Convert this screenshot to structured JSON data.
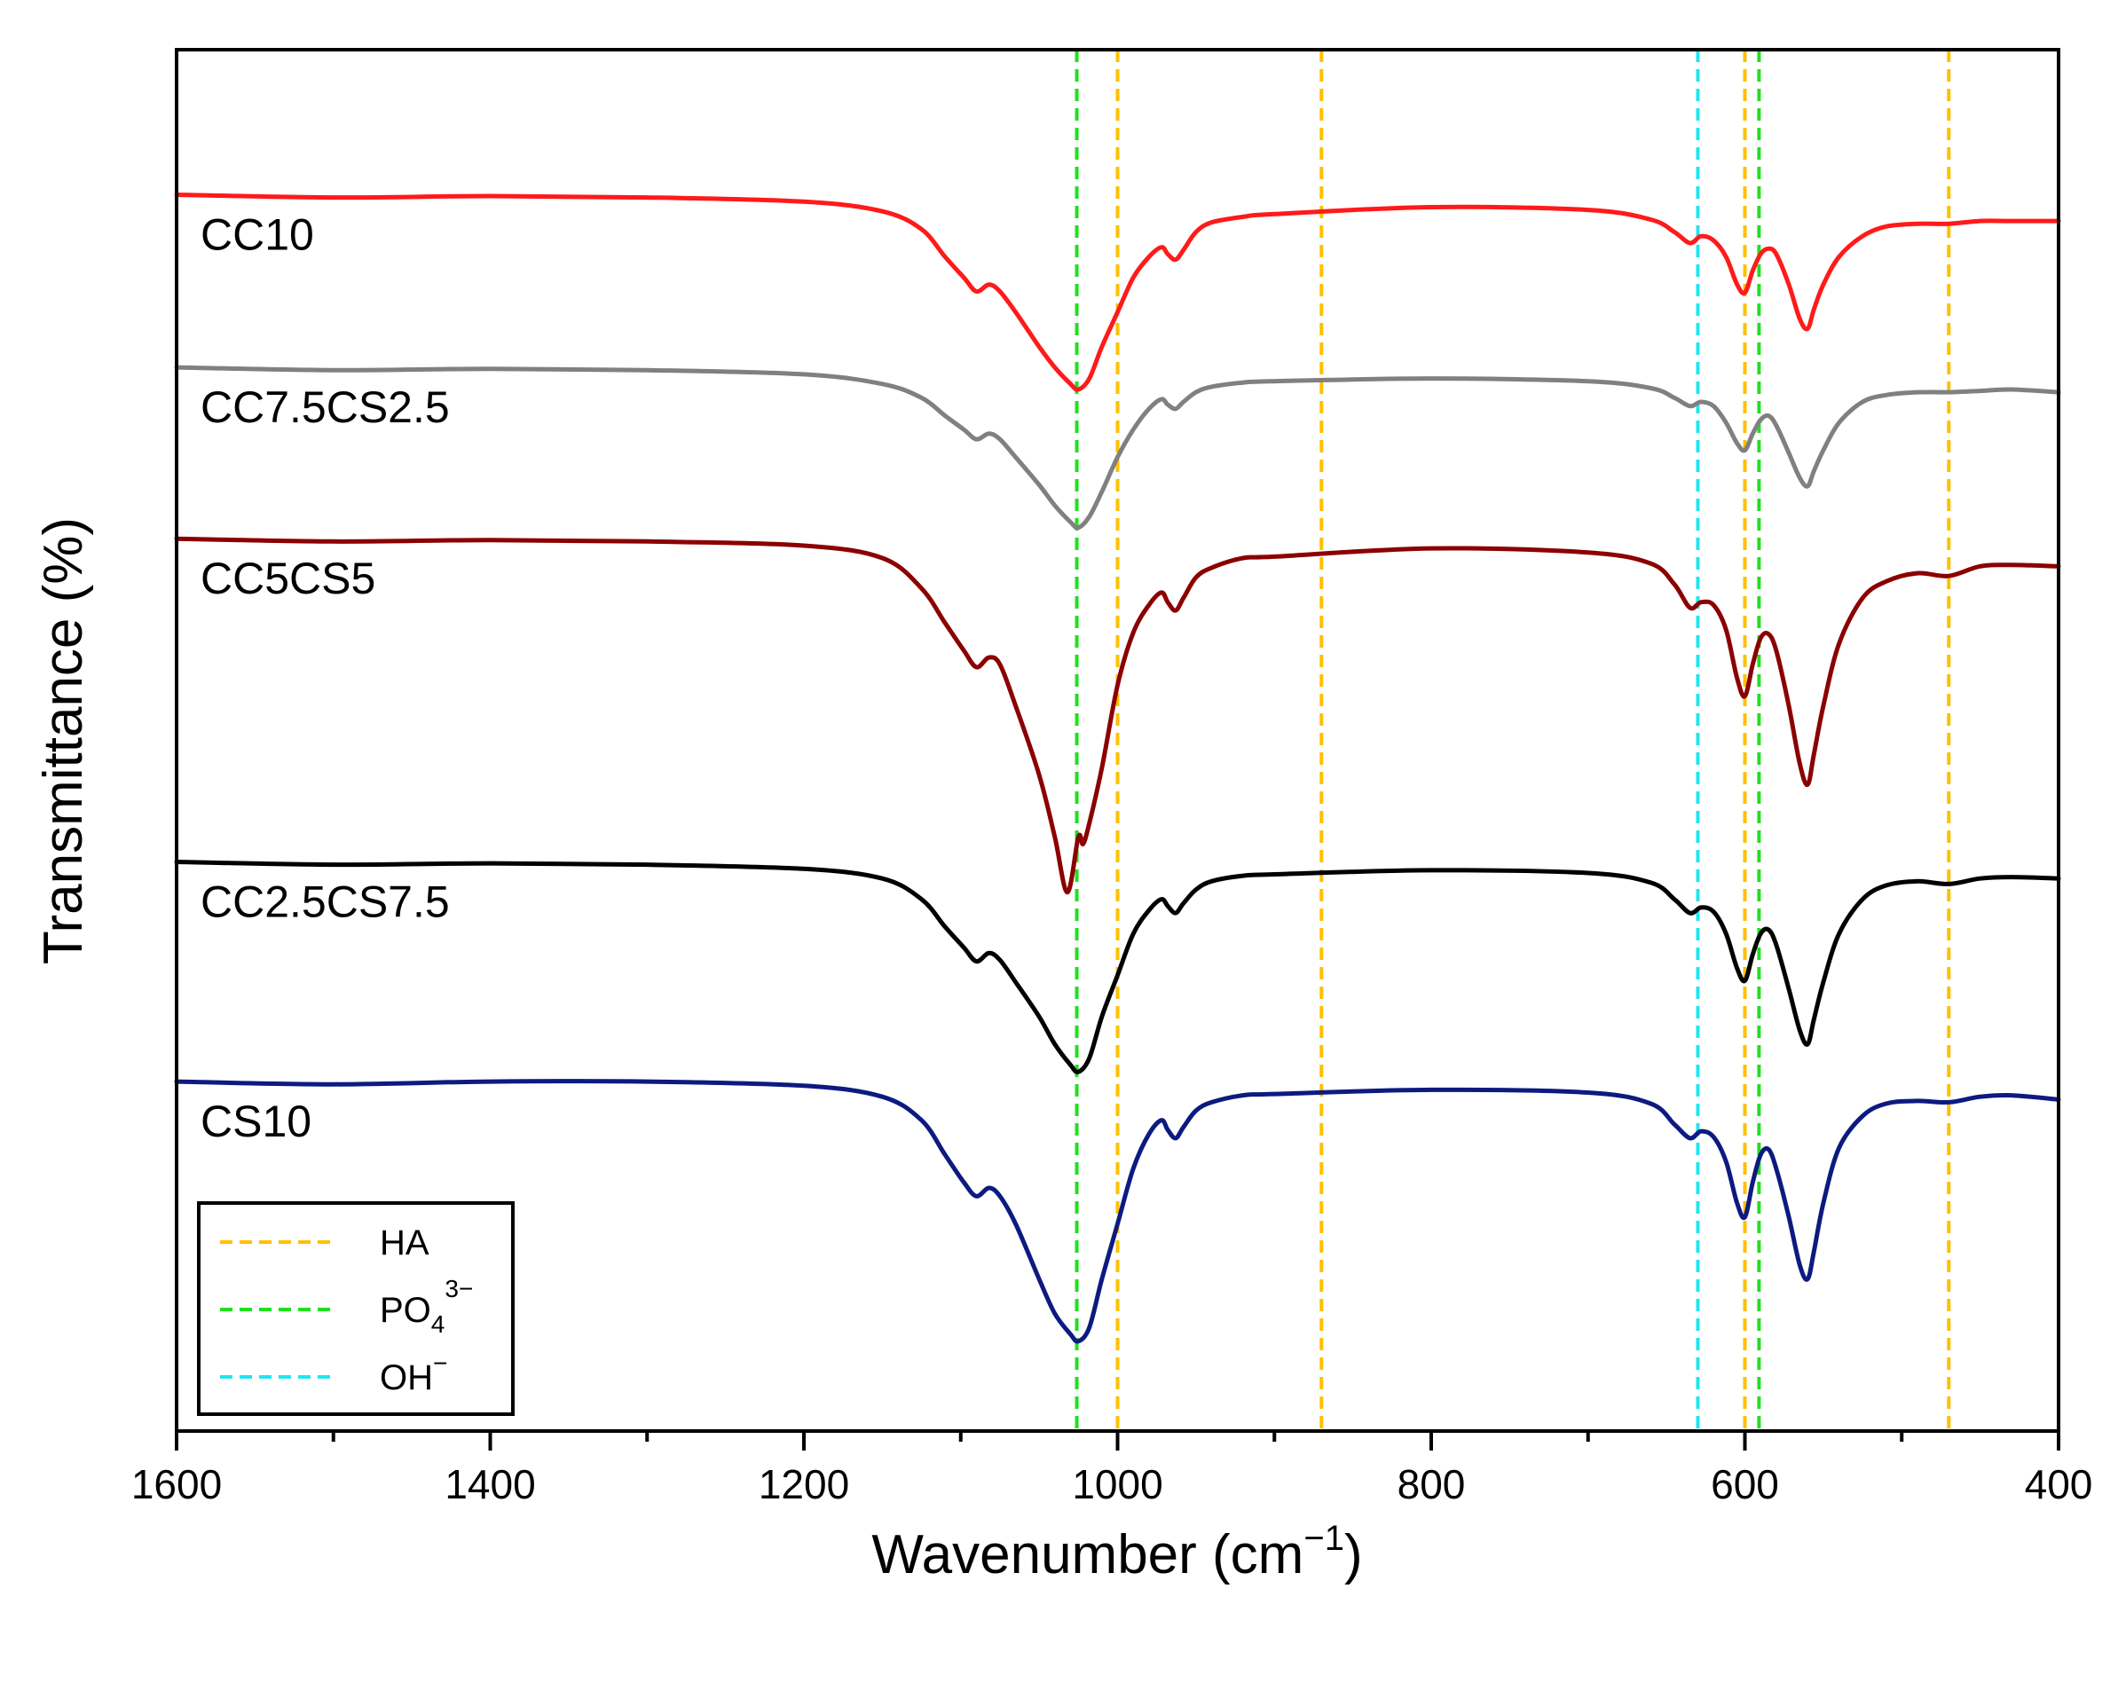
{
  "chart_data": {
    "type": "line",
    "title": "",
    "xlabel": "Wavenumber (cm⁻¹)",
    "xlabel_parts": {
      "base": "Wavenumber (cm",
      "sup": "−1",
      "close": ")"
    },
    "ylabel": "Transmittance (%)",
    "xlim": [
      1600,
      400
    ],
    "x_reversed": true,
    "ylim": [
      0,
      1
    ],
    "y_ticks_labeled": false,
    "x_ticks": [
      1600,
      1400,
      1200,
      1000,
      800,
      600,
      400
    ],
    "x_tick_labels": [
      "1600",
      "1400",
      "1200",
      "1000",
      "800",
      "600",
      "400"
    ],
    "grid": false,
    "series": [
      {
        "name": "CC10",
        "color": "#ff1a1a",
        "baseline": 0.895,
        "points": [
          [
            1600,
            0.895
          ],
          [
            1500,
            0.893
          ],
          [
            1400,
            0.894
          ],
          [
            1300,
            0.893
          ],
          [
            1200,
            0.89
          ],
          [
            1150,
            0.883
          ],
          [
            1125,
            0.87
          ],
          [
            1110,
            0.85
          ],
          [
            1098,
            0.835
          ],
          [
            1090,
            0.825
          ],
          [
            1082,
            0.83
          ],
          [
            1075,
            0.825
          ],
          [
            1065,
            0.81
          ],
          [
            1050,
            0.785
          ],
          [
            1040,
            0.77
          ],
          [
            1030,
            0.758
          ],
          [
            1025,
            0.754
          ],
          [
            1018,
            0.762
          ],
          [
            1010,
            0.785
          ],
          [
            1000,
            0.81
          ],
          [
            990,
            0.835
          ],
          [
            980,
            0.85
          ],
          [
            972,
            0.857
          ],
          [
            968,
            0.852
          ],
          [
            963,
            0.848
          ],
          [
            958,
            0.855
          ],
          [
            950,
            0.868
          ],
          [
            940,
            0.875
          ],
          [
            920,
            0.879
          ],
          [
            900,
            0.881
          ],
          [
            800,
            0.886
          ],
          [
            700,
            0.884
          ],
          [
            660,
            0.877
          ],
          [
            645,
            0.868
          ],
          [
            635,
            0.86
          ],
          [
            628,
            0.865
          ],
          [
            620,
            0.862
          ],
          [
            612,
            0.85
          ],
          [
            605,
            0.83
          ],
          [
            600,
            0.824
          ],
          [
            595,
            0.84
          ],
          [
            590,
            0.852
          ],
          [
            585,
            0.856
          ],
          [
            580,
            0.852
          ],
          [
            572,
            0.83
          ],
          [
            565,
            0.805
          ],
          [
            560,
            0.798
          ],
          [
            556,
            0.812
          ],
          [
            550,
            0.83
          ],
          [
            540,
            0.85
          ],
          [
            525,
            0.865
          ],
          [
            510,
            0.872
          ],
          [
            490,
            0.874
          ],
          [
            470,
            0.874
          ],
          [
            450,
            0.876
          ],
          [
            430,
            0.876
          ],
          [
            400,
            0.876
          ]
        ]
      },
      {
        "name": "CC7.5CS2.5",
        "color": "#808080",
        "baseline": 0.77,
        "points": [
          [
            1600,
            0.77
          ],
          [
            1500,
            0.768
          ],
          [
            1400,
            0.769
          ],
          [
            1300,
            0.768
          ],
          [
            1200,
            0.765
          ],
          [
            1150,
            0.758
          ],
          [
            1125,
            0.748
          ],
          [
            1110,
            0.735
          ],
          [
            1098,
            0.725
          ],
          [
            1090,
            0.718
          ],
          [
            1082,
            0.722
          ],
          [
            1075,
            0.718
          ],
          [
            1065,
            0.705
          ],
          [
            1050,
            0.685
          ],
          [
            1040,
            0.67
          ],
          [
            1030,
            0.658
          ],
          [
            1025,
            0.654
          ],
          [
            1018,
            0.662
          ],
          [
            1010,
            0.68
          ],
          [
            1000,
            0.705
          ],
          [
            990,
            0.725
          ],
          [
            980,
            0.74
          ],
          [
            972,
            0.747
          ],
          [
            968,
            0.743
          ],
          [
            963,
            0.74
          ],
          [
            958,
            0.745
          ],
          [
            950,
            0.752
          ],
          [
            940,
            0.756
          ],
          [
            920,
            0.759
          ],
          [
            900,
            0.76
          ],
          [
            800,
            0.762
          ],
          [
            700,
            0.76
          ],
          [
            660,
            0.755
          ],
          [
            645,
            0.748
          ],
          [
            635,
            0.742
          ],
          [
            628,
            0.745
          ],
          [
            620,
            0.742
          ],
          [
            612,
            0.73
          ],
          [
            605,
            0.715
          ],
          [
            600,
            0.71
          ],
          [
            595,
            0.722
          ],
          [
            590,
            0.732
          ],
          [
            585,
            0.735
          ],
          [
            580,
            0.728
          ],
          [
            572,
            0.708
          ],
          [
            565,
            0.69
          ],
          [
            560,
            0.684
          ],
          [
            556,
            0.695
          ],
          [
            550,
            0.71
          ],
          [
            540,
            0.73
          ],
          [
            525,
            0.745
          ],
          [
            510,
            0.75
          ],
          [
            490,
            0.752
          ],
          [
            470,
            0.752
          ],
          [
            450,
            0.753
          ],
          [
            430,
            0.754
          ],
          [
            400,
            0.752
          ]
        ]
      },
      {
        "name": "CC5CS5",
        "color": "#8b0000",
        "baseline": 0.646,
        "points": [
          [
            1600,
            0.646
          ],
          [
            1500,
            0.644
          ],
          [
            1400,
            0.645
          ],
          [
            1300,
            0.644
          ],
          [
            1200,
            0.641
          ],
          [
            1150,
            0.632
          ],
          [
            1125,
            0.61
          ],
          [
            1110,
            0.585
          ],
          [
            1098,
            0.565
          ],
          [
            1090,
            0.553
          ],
          [
            1082,
            0.56
          ],
          [
            1075,
            0.555
          ],
          [
            1065,
            0.525
          ],
          [
            1050,
            0.475
          ],
          [
            1040,
            0.43
          ],
          [
            1032,
            0.39
          ],
          [
            1025,
            0.43
          ],
          [
            1022,
            0.425
          ],
          [
            1018,
            0.44
          ],
          [
            1010,
            0.48
          ],
          [
            1000,
            0.54
          ],
          [
            990,
            0.578
          ],
          [
            980,
            0.598
          ],
          [
            972,
            0.607
          ],
          [
            968,
            0.6
          ],
          [
            963,
            0.594
          ],
          [
            958,
            0.603
          ],
          [
            950,
            0.618
          ],
          [
            940,
            0.625
          ],
          [
            920,
            0.632
          ],
          [
            900,
            0.633
          ],
          [
            800,
            0.639
          ],
          [
            700,
            0.636
          ],
          [
            660,
            0.628
          ],
          [
            645,
            0.613
          ],
          [
            635,
            0.596
          ],
          [
            628,
            0.6
          ],
          [
            620,
            0.598
          ],
          [
            612,
            0.58
          ],
          [
            605,
            0.545
          ],
          [
            600,
            0.532
          ],
          [
            595,
            0.555
          ],
          [
            590,
            0.574
          ],
          [
            585,
            0.577
          ],
          [
            580,
            0.565
          ],
          [
            572,
            0.525
          ],
          [
            565,
            0.483
          ],
          [
            560,
            0.468
          ],
          [
            556,
            0.49
          ],
          [
            550,
            0.525
          ],
          [
            540,
            0.57
          ],
          [
            525,
            0.603
          ],
          [
            510,
            0.615
          ],
          [
            490,
            0.621
          ],
          [
            470,
            0.619
          ],
          [
            450,
            0.626
          ],
          [
            430,
            0.627
          ],
          [
            400,
            0.626
          ]
        ]
      },
      {
        "name": "CC2.5CS7.5",
        "color": "#000000",
        "baseline": 0.412,
        "points": [
          [
            1600,
            0.412
          ],
          [
            1500,
            0.41
          ],
          [
            1400,
            0.411
          ],
          [
            1300,
            0.41
          ],
          [
            1200,
            0.407
          ],
          [
            1150,
            0.4
          ],
          [
            1125,
            0.385
          ],
          [
            1110,
            0.365
          ],
          [
            1098,
            0.35
          ],
          [
            1090,
            0.34
          ],
          [
            1082,
            0.346
          ],
          [
            1075,
            0.341
          ],
          [
            1065,
            0.325
          ],
          [
            1050,
            0.3
          ],
          [
            1040,
            0.28
          ],
          [
            1030,
            0.265
          ],
          [
            1025,
            0.26
          ],
          [
            1018,
            0.27
          ],
          [
            1010,
            0.3
          ],
          [
            1000,
            0.33
          ],
          [
            990,
            0.36
          ],
          [
            980,
            0.377
          ],
          [
            972,
            0.385
          ],
          [
            968,
            0.38
          ],
          [
            963,
            0.375
          ],
          [
            958,
            0.382
          ],
          [
            950,
            0.392
          ],
          [
            940,
            0.398
          ],
          [
            920,
            0.402
          ],
          [
            900,
            0.403
          ],
          [
            800,
            0.406
          ],
          [
            700,
            0.404
          ],
          [
            660,
            0.397
          ],
          [
            645,
            0.385
          ],
          [
            635,
            0.375
          ],
          [
            628,
            0.379
          ],
          [
            620,
            0.376
          ],
          [
            612,
            0.36
          ],
          [
            605,
            0.335
          ],
          [
            600,
            0.326
          ],
          [
            595,
            0.345
          ],
          [
            590,
            0.36
          ],
          [
            585,
            0.363
          ],
          [
            580,
            0.352
          ],
          [
            572,
            0.32
          ],
          [
            565,
            0.29
          ],
          [
            560,
            0.28
          ],
          [
            556,
            0.298
          ],
          [
            550,
            0.325
          ],
          [
            540,
            0.36
          ],
          [
            525,
            0.385
          ],
          [
            510,
            0.395
          ],
          [
            490,
            0.398
          ],
          [
            470,
            0.396
          ],
          [
            450,
            0.4
          ],
          [
            430,
            0.401
          ],
          [
            400,
            0.4
          ]
        ]
      },
      {
        "name": "CS10",
        "color": "#0d1a80",
        "baseline": 0.253,
        "points": [
          [
            1600,
            0.253
          ],
          [
            1500,
            0.251
          ],
          [
            1400,
            0.253
          ],
          [
            1300,
            0.253
          ],
          [
            1200,
            0.25
          ],
          [
            1150,
            0.242
          ],
          [
            1125,
            0.225
          ],
          [
            1110,
            0.2
          ],
          [
            1098,
            0.18
          ],
          [
            1090,
            0.17
          ],
          [
            1082,
            0.176
          ],
          [
            1075,
            0.17
          ],
          [
            1065,
            0.15
          ],
          [
            1050,
            0.11
          ],
          [
            1040,
            0.085
          ],
          [
            1030,
            0.07
          ],
          [
            1025,
            0.065
          ],
          [
            1018,
            0.075
          ],
          [
            1010,
            0.11
          ],
          [
            1000,
            0.15
          ],
          [
            990,
            0.19
          ],
          [
            980,
            0.215
          ],
          [
            972,
            0.225
          ],
          [
            968,
            0.218
          ],
          [
            963,
            0.212
          ],
          [
            958,
            0.22
          ],
          [
            950,
            0.232
          ],
          [
            940,
            0.238
          ],
          [
            920,
            0.243
          ],
          [
            900,
            0.244
          ],
          [
            800,
            0.247
          ],
          [
            700,
            0.245
          ],
          [
            660,
            0.237
          ],
          [
            645,
            0.222
          ],
          [
            635,
            0.212
          ],
          [
            628,
            0.217
          ],
          [
            620,
            0.213
          ],
          [
            612,
            0.195
          ],
          [
            605,
            0.165
          ],
          [
            600,
            0.155
          ],
          [
            595,
            0.18
          ],
          [
            590,
            0.2
          ],
          [
            585,
            0.204
          ],
          [
            580,
            0.19
          ],
          [
            572,
            0.155
          ],
          [
            565,
            0.12
          ],
          [
            560,
            0.11
          ],
          [
            556,
            0.13
          ],
          [
            550,
            0.165
          ],
          [
            540,
            0.205
          ],
          [
            525,
            0.228
          ],
          [
            510,
            0.237
          ],
          [
            490,
            0.239
          ],
          [
            470,
            0.238
          ],
          [
            450,
            0.242
          ],
          [
            430,
            0.243
          ],
          [
            400,
            0.24
          ]
        ]
      }
    ],
    "reference_lines": [
      {
        "group": "HA",
        "color": "#ffc000",
        "x": [
          1000,
          870,
          600,
          470
        ]
      },
      {
        "group": "PO4",
        "color": "#1fe01f",
        "x": [
          1026,
          591
        ]
      },
      {
        "group": "OH",
        "color": "#20e6f0",
        "x": [
          630
        ]
      }
    ],
    "legend": {
      "position": "bottom-left",
      "entries": [
        {
          "label": "HA",
          "color": "#ffc000"
        },
        {
          "label": "PO4",
          "sub": "4",
          "sup": "3−",
          "base": "PO",
          "color": "#1fe01f"
        },
        {
          "label": "OH",
          "sup": "−",
          "base": "OH",
          "color": "#20e6f0"
        }
      ]
    }
  }
}
